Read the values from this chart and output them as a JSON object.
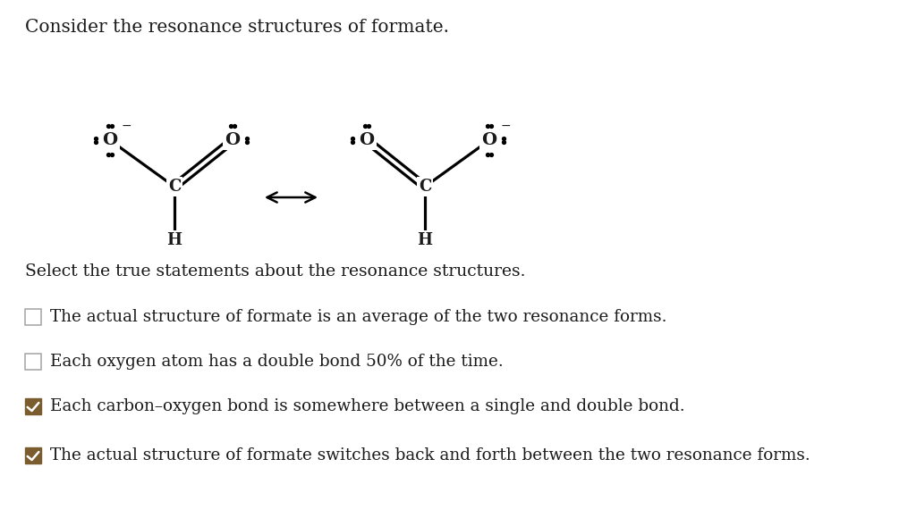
{
  "title": "Consider the resonance structures of formate.",
  "question": "Select the true statements about the resonance structures.",
  "options": [
    {
      "text": "The actual structure of formate is an average of the two resonance forms.",
      "checked": false
    },
    {
      "text": "Each oxygen atom has a double bond 50% of the time.",
      "checked": false
    },
    {
      "text": "Each carbon–oxygen bond is somewhere between a single and double bond.",
      "checked": true
    },
    {
      "text": "The actual structure of formate switches back and forth between the two resonance forms.",
      "checked": true
    }
  ],
  "bg_color": "#ffffff",
  "text_color": "#1a1a1a",
  "check_color": "#7a5c2e",
  "check_border": "#7a5c2e",
  "empty_border": "#aaaaaa",
  "font_size_title": 14.5,
  "font_size_question": 13.5,
  "font_size_options": 13.2,
  "font_size_atom": 14,
  "font_family": "DejaVu Serif"
}
